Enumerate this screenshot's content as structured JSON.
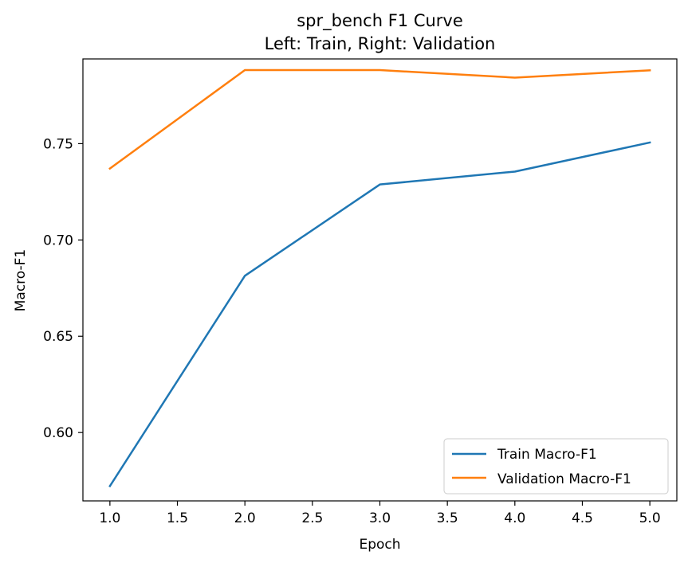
{
  "chart_data": {
    "type": "line",
    "title_line1": "spr_bench F1 Curve",
    "title_line2": "Left: Train, Right: Validation",
    "xlabel": "Epoch",
    "ylabel": "Macro-F1",
    "x": [
      1,
      2,
      3,
      4,
      5
    ],
    "xlim": [
      0.8,
      5.2
    ],
    "ylim": [
      0.5645,
      0.794
    ],
    "xticks": [
      "1.0",
      "1.5",
      "2.0",
      "2.5",
      "3.0",
      "3.5",
      "4.0",
      "4.5",
      "5.0"
    ],
    "yticks": [
      "0.60",
      "0.65",
      "0.70",
      "0.75"
    ],
    "grid": false,
    "legend_position": "lower-right",
    "series": [
      {
        "name": "Train Macro-F1",
        "color": "#1f77b4",
        "values": [
          0.5722,
          0.6814,
          0.7288,
          0.7355,
          0.7506
        ]
      },
      {
        "name": "Validation Macro-F1",
        "color": "#ff7f0e",
        "values": [
          0.7371,
          0.7882,
          0.7882,
          0.7843,
          0.7881
        ]
      }
    ]
  }
}
